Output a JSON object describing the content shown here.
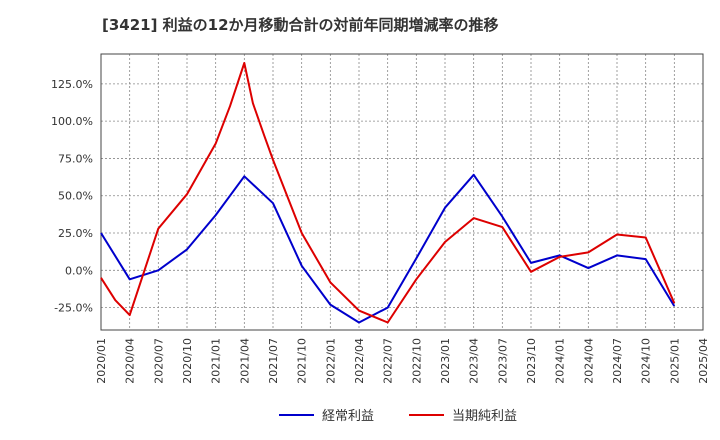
{
  "chart_data": {
    "type": "line",
    "title": "[3421]  利益の12か月移動合計の対前年同期増減率の推移",
    "xlabel": "",
    "ylabel": "",
    "x": [
      "2020/01",
      "2020/04",
      "2020/07",
      "2020/10",
      "2021/01",
      "2021/04",
      "2021/07",
      "2021/10",
      "2022/01",
      "2022/04",
      "2022/07",
      "2022/10",
      "2023/01",
      "2023/04",
      "2023/07",
      "2023/10",
      "2024/01",
      "2024/04",
      "2024/07",
      "2024/10",
      "2025/01",
      "2025/04"
    ],
    "ylim": [
      -40,
      145
    ],
    "yticks": [
      -25,
      0,
      25,
      50,
      75,
      100,
      125
    ],
    "ytick_labels": [
      "-25.0%",
      "0.0%",
      "25.0%",
      "50.0%",
      "75.0%",
      "100.0%",
      "125.0%"
    ],
    "grid": true,
    "legend_position": "bottom-center",
    "series": [
      {
        "name": "経常利益",
        "color": "#0000cc",
        "points": [
          [
            0,
            25
          ],
          [
            1,
            -6
          ],
          [
            2,
            0
          ],
          [
            3,
            14
          ],
          [
            4,
            37
          ],
          [
            5,
            63
          ],
          [
            6,
            45
          ],
          [
            7,
            3
          ],
          [
            8,
            -23
          ],
          [
            9,
            -35
          ],
          [
            10,
            -25
          ],
          [
            11,
            8
          ],
          [
            12,
            42
          ],
          [
            13,
            64
          ],
          [
            14,
            36
          ],
          [
            15,
            5
          ],
          [
            16,
            10
          ],
          [
            17,
            1.5
          ],
          [
            18,
            10
          ],
          [
            19,
            7.5
          ],
          [
            20,
            -24
          ]
        ]
      },
      {
        "name": "当期純利益",
        "color": "#dd0000",
        "points": [
          [
            0,
            -5
          ],
          [
            0.5,
            -20
          ],
          [
            1,
            -30
          ],
          [
            2,
            28
          ],
          [
            3,
            51
          ],
          [
            4,
            85
          ],
          [
            4.5,
            110
          ],
          [
            5,
            139
          ],
          [
            5.3,
            112
          ],
          [
            5.7,
            90
          ],
          [
            6,
            74
          ],
          [
            7,
            25
          ],
          [
            8,
            -8
          ],
          [
            9,
            -27
          ],
          [
            10,
            -35
          ],
          [
            11,
            -6
          ],
          [
            12,
            19
          ],
          [
            13,
            35
          ],
          [
            14,
            29
          ],
          [
            15,
            -1
          ],
          [
            16,
            9
          ],
          [
            17,
            12
          ],
          [
            18,
            24
          ],
          [
            19,
            22
          ],
          [
            20,
            -22
          ]
        ]
      }
    ]
  }
}
